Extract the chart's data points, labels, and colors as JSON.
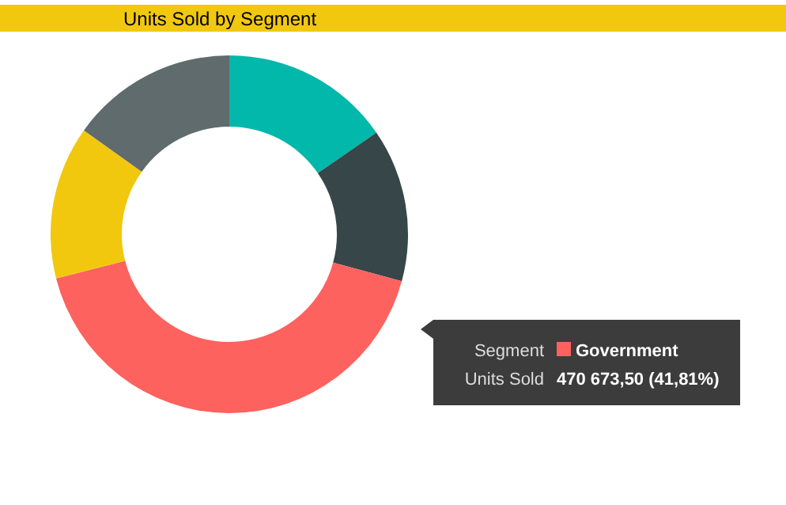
{
  "chart_data": {
    "type": "donut",
    "title": "Units Sold by Segment",
    "categories": [
      null,
      null,
      "Government",
      null,
      null
    ],
    "values": [
      15.38,
      13.84,
      41.81,
      13.84,
      15.13
    ],
    "colors": [
      "#01b8aa",
      "#374649",
      "#fd625e",
      "#f2c80f",
      "#5f6b6d"
    ],
    "annotations": [
      "Segment",
      "Units Sold",
      "470 673,50 (41,81%)"
    ]
  }
}
